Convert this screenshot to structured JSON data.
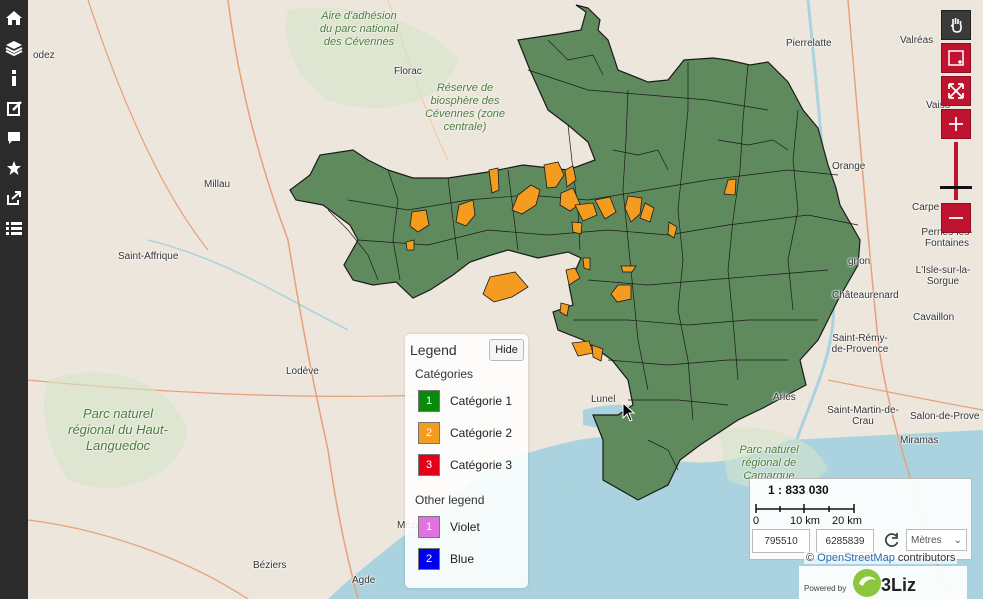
{
  "sidebar": {
    "items": [
      {
        "name": "home-icon"
      },
      {
        "name": "layers-icon"
      },
      {
        "name": "info-icon"
      },
      {
        "name": "edit-icon"
      },
      {
        "name": "comment-icon"
      },
      {
        "name": "star-icon"
      },
      {
        "name": "share-icon"
      },
      {
        "name": "list-icon"
      }
    ]
  },
  "map": {
    "places": [
      "odez",
      "Florac",
      "Millau",
      "Saint-Affrique",
      "Lodève",
      "Bézie​rs",
      "Agde",
      "Mèze",
      "Pierrelatte",
      "Valréas",
      "Vaiso",
      "Orange",
      "Carpe",
      "Pernes-les-Fontaines",
      "L'Isle-sur-la-Sorgue",
      "Châteaurenard",
      "Cavaillon",
      "Saint-Rémy-de-Provence",
      "Arles",
      "Saint-Martin-de-Crau",
      "Salon-de-Prove",
      "Miramas",
      "Lunel",
      "gnon"
    ],
    "parks": [
      "Aire d'adhésion du parc national des Cévennes",
      "Réserve de biosphère des Cévennes (zone centrale)",
      "Parc naturel régional du Haut-Languedoc",
      "Parc naturel régional de Camargue"
    ],
    "colors": {
      "region_fill": "#5e8a5e",
      "highlight_fill": "#f39c1f",
      "sea": "#aad3df",
      "land": "#ece6dc"
    }
  },
  "navbar": {
    "buttons": [
      "pan-icon",
      "zoom-box-icon",
      "zoom-extent-icon",
      "zoom-in-icon",
      "zoom-out-icon"
    ]
  },
  "legend": {
    "title": "Legend",
    "hide_label": "Hide",
    "groups": [
      {
        "title": "Catégories",
        "items": [
          {
            "num": "1",
            "label": "Catégorie 1",
            "color": "#0a8a0a"
          },
          {
            "num": "2",
            "label": "Catégorie 2",
            "color": "#f39c1f"
          },
          {
            "num": "3",
            "label": "Catégorie 3",
            "color": "#e3001b"
          }
        ]
      },
      {
        "title": "Other legend",
        "items": [
          {
            "num": "1",
            "label": "Violet",
            "color": "#e073e0"
          },
          {
            "num": "2",
            "label": "Blue",
            "color": "#0000ee"
          }
        ]
      }
    ]
  },
  "scale": {
    "ratio": "1 : 833 030",
    "ticks": [
      "0",
      "10 km",
      "20 km"
    ],
    "x": "795510",
    "y": "6285839",
    "units": "Mètres"
  },
  "attribution": {
    "prefix": "©",
    "link": "OpenStreetMap",
    "suffix": "contributors"
  },
  "powered": {
    "text": "Powered by",
    "brand": "3Liz"
  }
}
